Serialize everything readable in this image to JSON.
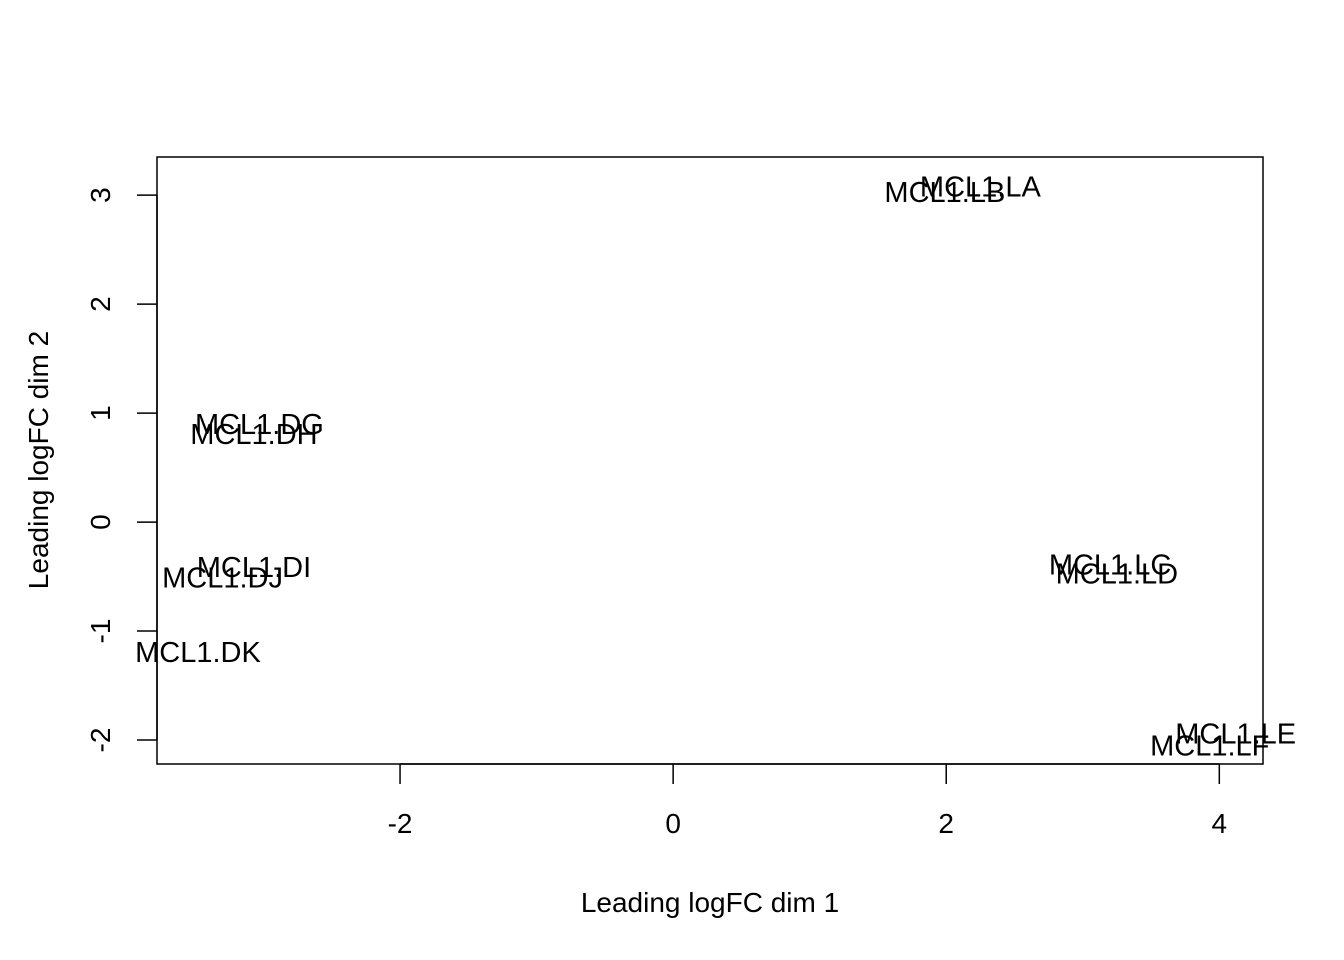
{
  "chart_data": {
    "type": "scatter",
    "title": "",
    "xlabel": "Leading logFC dim 1",
    "ylabel": "Leading logFC dim 2",
    "xlim": [
      -3.78,
      4.32
    ],
    "ylim": [
      -2.22,
      3.35
    ],
    "x_ticks": [
      -2,
      0,
      2,
      4
    ],
    "y_ticks": [
      -2,
      -1,
      0,
      1,
      2,
      3
    ],
    "grid": false,
    "marker": "text-labels",
    "points": [
      {
        "label": "MCL1.LA",
        "x": 2.25,
        "y": 3.08
      },
      {
        "label": "MCL1.LB",
        "x": 1.99,
        "y": 3.03
      },
      {
        "label": "MCL1.DG",
        "x": -3.03,
        "y": 0.9
      },
      {
        "label": "MCL1.DH",
        "x": -3.07,
        "y": 0.81
      },
      {
        "label": "MCL1.DI",
        "x": -3.07,
        "y": -0.41
      },
      {
        "label": "MCL1.DJ",
        "x": -3.3,
        "y": -0.51
      },
      {
        "label": "MCL1.DK",
        "x": -3.48,
        "y": -1.19
      },
      {
        "label": "MCL1.LC",
        "x": 3.2,
        "y": -0.39
      },
      {
        "label": "MCL1.LD",
        "x": 3.25,
        "y": -0.47
      },
      {
        "label": "MCL1.LE",
        "x": 4.12,
        "y": -1.94
      },
      {
        "label": "MCL1.LF",
        "x": 3.93,
        "y": -2.05
      }
    ]
  }
}
